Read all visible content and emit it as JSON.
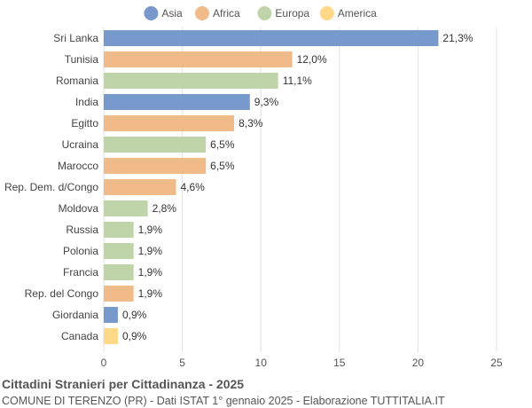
{
  "chart_data": {
    "type": "bar",
    "orientation": "horizontal",
    "title": "Cittadini Stranieri per Cittadinanza - 2025",
    "subtitle": "COMUNE DI TERENZO (PR) - Dati ISTAT 1° gennaio 2025 - Elaborazione TUTTITALIA.IT",
    "legend": [
      {
        "name": "Asia",
        "color": "#7799cc"
      },
      {
        "name": "Africa",
        "color": "#f0bb88"
      },
      {
        "name": "Europa",
        "color": "#c0d4aa"
      },
      {
        "name": "America",
        "color": "#ffd888"
      }
    ],
    "legend_position": "top-center",
    "grid": true,
    "xlim": [
      0,
      25
    ],
    "xticks": [
      "0",
      "5",
      "10",
      "15",
      "20",
      "25"
    ],
    "bars": [
      {
        "category": "Sri Lanka",
        "value": 21.3,
        "label": "21,3%",
        "group": "Asia"
      },
      {
        "category": "Tunisia",
        "value": 12.0,
        "label": "12,0%",
        "group": "Africa"
      },
      {
        "category": "Romania",
        "value": 11.1,
        "label": "11,1%",
        "group": "Europa"
      },
      {
        "category": "India",
        "value": 9.3,
        "label": "9,3%",
        "group": "Asia"
      },
      {
        "category": "Egitto",
        "value": 8.3,
        "label": "8,3%",
        "group": "Africa"
      },
      {
        "category": "Ucraina",
        "value": 6.5,
        "label": "6,5%",
        "group": "Europa"
      },
      {
        "category": "Marocco",
        "value": 6.5,
        "label": "6,5%",
        "group": "Africa"
      },
      {
        "category": "Rep. Dem. d/Congo",
        "value": 4.6,
        "label": "4,6%",
        "group": "Africa"
      },
      {
        "category": "Moldova",
        "value": 2.8,
        "label": "2,8%",
        "group": "Europa"
      },
      {
        "category": "Russia",
        "value": 1.9,
        "label": "1,9%",
        "group": "Europa"
      },
      {
        "category": "Polonia",
        "value": 1.9,
        "label": "1,9%",
        "group": "Europa"
      },
      {
        "category": "Francia",
        "value": 1.9,
        "label": "1,9%",
        "group": "Europa"
      },
      {
        "category": "Rep. del Congo",
        "value": 1.9,
        "label": "1,9%",
        "group": "Africa"
      },
      {
        "category": "Giordania",
        "value": 0.9,
        "label": "0,9%",
        "group": "Asia"
      },
      {
        "category": "Canada",
        "value": 0.9,
        "label": "0,9%",
        "group": "America"
      }
    ]
  }
}
